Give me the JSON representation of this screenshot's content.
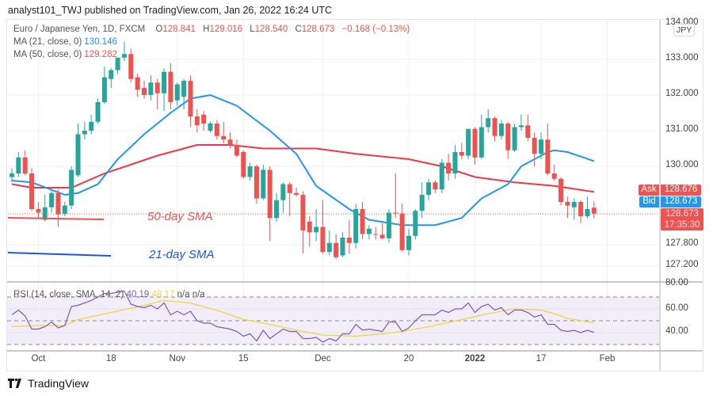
{
  "header": {
    "published": "analyst101_TWJ published on TradingView.com, Jan 26, 2022 16:24 UTC"
  },
  "legend": {
    "symbol": "Euro / Japanese Yen, 1D, FXCM",
    "o_label": "O",
    "o": "128.841",
    "h_label": "H",
    "h": "129.016",
    "l_label": "L",
    "l": "128.540",
    "c_label": "C",
    "c": "128.673",
    "change": "−0.168 (−0.13%)",
    "ma21_label": "MA (21, close, 0)",
    "ma21_value": "130.146",
    "ma50_label": "MA (50, close, 0)",
    "ma50_value": "129.282",
    "rsi_label": "RSI (14, close, SMA, 14, 2)",
    "rsi_value": "40.19",
    "rsi_ma_value": "48.17",
    "na1": "n/a",
    "na2": "n/a"
  },
  "price_axis": {
    "currency": "JPY",
    "ticks": [
      "134.000",
      "133.000",
      "132.000",
      "131.000",
      "130.000",
      "127.800",
      "127.200"
    ]
  },
  "rsi_axis": {
    "ticks": [
      "80.00",
      "60.00",
      "40.00"
    ]
  },
  "tags": {
    "ask_label": "Ask",
    "ask": "128.676",
    "bid_label": "Bid",
    "bid": "128.673",
    "last": "128.673",
    "countdown": "17:35:30"
  },
  "annotations": {
    "sma50": "50-day SMA",
    "sma21": "21-day SMA"
  },
  "footer": {
    "brand": "TradingView"
  },
  "colors": {
    "up": "#26a69a",
    "down": "#ef5350",
    "ma21": "#2196f3",
    "ma50": "#f23645",
    "rsi": "#7e57c2",
    "rsi_ma": "#f2d53c"
  },
  "chart_data": {
    "type": "candlestick",
    "title": "Euro / Japanese Yen, 1D, FXCM",
    "x_ticks": [
      {
        "label": "Oct",
        "candle": 4
      },
      {
        "label": "18",
        "candle": 15
      },
      {
        "label": "Nov",
        "candle": 25
      },
      {
        "label": "15",
        "candle": 35
      },
      {
        "label": "Dec",
        "candle": 47
      },
      {
        "label": "20",
        "candle": 60
      },
      {
        "label": "2022",
        "candle": 70
      },
      {
        "label": "17",
        "candle": 80
      },
      {
        "label": "Feb",
        "candle": 90
      }
    ],
    "price_ticks": [
      134,
      133,
      132,
      131,
      130,
      127.8,
      127.2
    ],
    "grid": true,
    "ohlc": [
      [
        129.7,
        129.95,
        129.55,
        129.8
      ],
      [
        129.8,
        130.4,
        129.7,
        130.25
      ],
      [
        130.25,
        130.45,
        129.75,
        129.8
      ],
      [
        129.8,
        129.95,
        128.75,
        128.8
      ],
      [
        128.8,
        129.0,
        128.55,
        128.7
      ],
      [
        128.5,
        129.2,
        128.45,
        128.85
      ],
      [
        128.85,
        129.35,
        128.7,
        129.25
      ],
      [
        129.25,
        129.35,
        128.3,
        128.65
      ],
      [
        128.67,
        129.0,
        128.6,
        128.9
      ],
      [
        128.9,
        130.0,
        128.8,
        129.9
      ],
      [
        129.75,
        131.2,
        129.7,
        130.9
      ],
      [
        130.9,
        131.25,
        130.75,
        131.0
      ],
      [
        131.0,
        131.45,
        130.9,
        131.25
      ],
      [
        131.25,
        131.9,
        131.2,
        131.8
      ],
      [
        131.8,
        132.8,
        131.75,
        132.5
      ],
      [
        132.45,
        132.75,
        132.2,
        132.7
      ],
      [
        132.7,
        133.05,
        132.6,
        133.05
      ],
      [
        133.05,
        133.5,
        132.95,
        133.15
      ],
      [
        133.15,
        133.3,
        132.35,
        132.45
      ],
      [
        132.5,
        132.6,
        131.95,
        132.15
      ],
      [
        132.2,
        132.4,
        131.9,
        132.0
      ],
      [
        132.0,
        132.55,
        131.85,
        132.35
      ],
      [
        132.35,
        132.45,
        131.6,
        132.05
      ],
      [
        132.05,
        132.75,
        131.55,
        132.65
      ],
      [
        132.65,
        132.9,
        131.6,
        131.8
      ],
      [
        131.85,
        132.35,
        131.7,
        132.3
      ],
      [
        131.95,
        132.45,
        131.6,
        132.4
      ],
      [
        132.4,
        132.55,
        131.1,
        131.4
      ],
      [
        131.4,
        131.6,
        130.95,
        131.15
      ],
      [
        131.45,
        131.55,
        131.0,
        131.2
      ],
      [
        131.0,
        131.25,
        130.95,
        131.2
      ],
      [
        131.2,
        131.3,
        130.75,
        130.85
      ],
      [
        130.85,
        131.25,
        130.65,
        130.75
      ],
      [
        130.75,
        130.95,
        130.5,
        130.6
      ],
      [
        130.6,
        130.75,
        130.25,
        130.3
      ],
      [
        130.4,
        130.45,
        129.65,
        129.7
      ],
      [
        129.7,
        130.1,
        129.6,
        130.0
      ],
      [
        130.0,
        130.05,
        128.95,
        129.1
      ],
      [
        129.1,
        130.05,
        129.05,
        129.9
      ],
      [
        129.9,
        130.0,
        127.9,
        128.55
      ],
      [
        128.55,
        129.25,
        128.45,
        129.05
      ],
      [
        129.05,
        129.55,
        128.7,
        129.5
      ],
      [
        129.5,
        129.55,
        128.6,
        129.25
      ],
      [
        129.25,
        129.4,
        129.15,
        129.2
      ],
      [
        129.2,
        129.3,
        127.55,
        128.2
      ],
      [
        128.45,
        128.6,
        127.75,
        128.15
      ],
      [
        128.15,
        128.8,
        127.9,
        128.3
      ],
      [
        128.3,
        129.05,
        127.55,
        127.6
      ],
      [
        127.6,
        128.2,
        127.5,
        127.85
      ],
      [
        127.85,
        128.1,
        127.4,
        127.45
      ],
      [
        127.5,
        128.15,
        127.45,
        128.0
      ],
      [
        128.0,
        128.5,
        127.55,
        127.85
      ],
      [
        127.85,
        128.95,
        127.7,
        128.8
      ],
      [
        128.8,
        129.0,
        127.95,
        128.1
      ],
      [
        128.1,
        128.35,
        127.95,
        128.25
      ],
      [
        128.1,
        128.3,
        127.95,
        128.08
      ],
      [
        128.08,
        128.4,
        127.95,
        127.98
      ],
      [
        127.98,
        128.8,
        127.85,
        128.7
      ],
      [
        128.7,
        129.8,
        128.55,
        128.68
      ],
      [
        128.68,
        128.95,
        127.6,
        127.65
      ],
      [
        127.65,
        128.25,
        127.5,
        128.05
      ],
      [
        128.05,
        128.8,
        127.95,
        128.75
      ],
      [
        128.75,
        129.55,
        128.55,
        129.2
      ],
      [
        129.2,
        129.65,
        129.05,
        129.55
      ],
      [
        129.55,
        129.6,
        129.25,
        129.35
      ],
      [
        129.35,
        130.2,
        129.25,
        130.1
      ],
      [
        130.1,
        130.35,
        129.6,
        129.8
      ],
      [
        129.8,
        130.6,
        129.65,
        130.4
      ],
      [
        130.4,
        130.65,
        130.2,
        130.3
      ],
      [
        130.3,
        131.05,
        130.2,
        131.05
      ],
      [
        131.05,
        131.1,
        130.05,
        130.25
      ],
      [
        130.25,
        131.45,
        130.2,
        131.1
      ],
      [
        131.1,
        131.6,
        130.95,
        131.35
      ],
      [
        131.35,
        131.4,
        130.7,
        130.85
      ],
      [
        130.85,
        131.3,
        130.75,
        131.2
      ],
      [
        131.2,
        131.25,
        130.2,
        130.45
      ],
      [
        130.45,
        131.2,
        130.4,
        131.1
      ],
      [
        131.1,
        131.45,
        131.0,
        131.15
      ],
      [
        131.15,
        131.45,
        130.7,
        130.8
      ],
      [
        130.8,
        130.95,
        130.0,
        130.35
      ],
      [
        130.35,
        130.95,
        130.2,
        130.75
      ],
      [
        130.75,
        131.2,
        129.75,
        129.8
      ],
      [
        129.8,
        130.05,
        129.6,
        129.65
      ],
      [
        129.65,
        129.7,
        128.9,
        129.0
      ],
      [
        129.0,
        129.15,
        128.55,
        128.9
      ],
      [
        128.85,
        129.1,
        128.5,
        129.0
      ],
      [
        129.0,
        129.05,
        128.4,
        128.6
      ],
      [
        128.6,
        129.15,
        128.55,
        128.8
      ],
      [
        128.841,
        129.016,
        128.54,
        128.673
      ]
    ],
    "ma21": [
      [
        0,
        129.6
      ],
      [
        3,
        129.55
      ],
      [
        8,
        129.2
      ],
      [
        10,
        129.25
      ],
      [
        13,
        129.5
      ],
      [
        16,
        130.2
      ],
      [
        20,
        130.9
      ],
      [
        24,
        131.5
      ],
      [
        27,
        131.9
      ],
      [
        30,
        132.0
      ],
      [
        34,
        131.7
      ],
      [
        39,
        131.0
      ],
      [
        43,
        130.35
      ],
      [
        46,
        129.45
      ],
      [
        51,
        128.8
      ],
      [
        54,
        128.5
      ],
      [
        59,
        128.35
      ],
      [
        64,
        128.35
      ],
      [
        68,
        128.55
      ],
      [
        71,
        129.1
      ],
      [
        75,
        129.5
      ],
      [
        77,
        130.0
      ],
      [
        81,
        130.4
      ],
      [
        82,
        130.45
      ],
      [
        84,
        130.4
      ],
      [
        88,
        130.146
      ]
    ],
    "ma50": [
      [
        0,
        129.5
      ],
      [
        3,
        129.4
      ],
      [
        9,
        129.4
      ],
      [
        14,
        129.8
      ],
      [
        22,
        130.3
      ],
      [
        28,
        130.6
      ],
      [
        33,
        130.6
      ],
      [
        38,
        130.5
      ],
      [
        46,
        130.5
      ],
      [
        52,
        130.35
      ],
      [
        60,
        130.2
      ],
      [
        65,
        130.0
      ],
      [
        70,
        129.7
      ],
      [
        76,
        129.55
      ],
      [
        82,
        129.45
      ],
      [
        88,
        129.282
      ]
    ],
    "rsi": [
      55,
      59,
      54,
      43,
      43,
      45,
      49,
      44,
      46,
      62,
      63,
      65,
      67,
      70,
      73,
      73,
      74,
      75,
      64,
      62,
      61,
      63,
      60,
      65,
      55,
      58,
      55,
      58,
      50,
      48,
      48,
      45,
      44,
      43,
      41,
      37,
      39,
      33,
      42,
      35,
      39,
      43,
      41,
      41,
      35,
      35,
      36,
      32,
      35,
      33,
      39,
      39,
      47,
      42,
      43,
      42,
      41,
      49,
      49,
      41,
      44,
      50,
      55,
      55,
      55,
      59,
      57,
      60,
      60,
      65,
      57,
      62,
      64,
      59,
      61,
      55,
      59,
      59,
      57,
      53,
      55,
      47,
      47,
      42,
      41,
      42,
      40,
      42,
      40.19
    ],
    "rsi_ma": [
      [
        0,
        45
      ],
      [
        4,
        46
      ],
      [
        8,
        46
      ],
      [
        10,
        51
      ],
      [
        15,
        57
      ],
      [
        20,
        63
      ],
      [
        23,
        67
      ],
      [
        27,
        65
      ],
      [
        32,
        57
      ],
      [
        35,
        51
      ],
      [
        39,
        47
      ],
      [
        44,
        41
      ],
      [
        47,
        38
      ],
      [
        52,
        37
      ],
      [
        56,
        39
      ],
      [
        59,
        41
      ],
      [
        63,
        45
      ],
      [
        68,
        51
      ],
      [
        72,
        56
      ],
      [
        76,
        60
      ],
      [
        80,
        59
      ],
      [
        82,
        56
      ],
      [
        84,
        52
      ],
      [
        88,
        48.17
      ]
    ],
    "rsi_levels": [
      70,
      50,
      30
    ]
  }
}
